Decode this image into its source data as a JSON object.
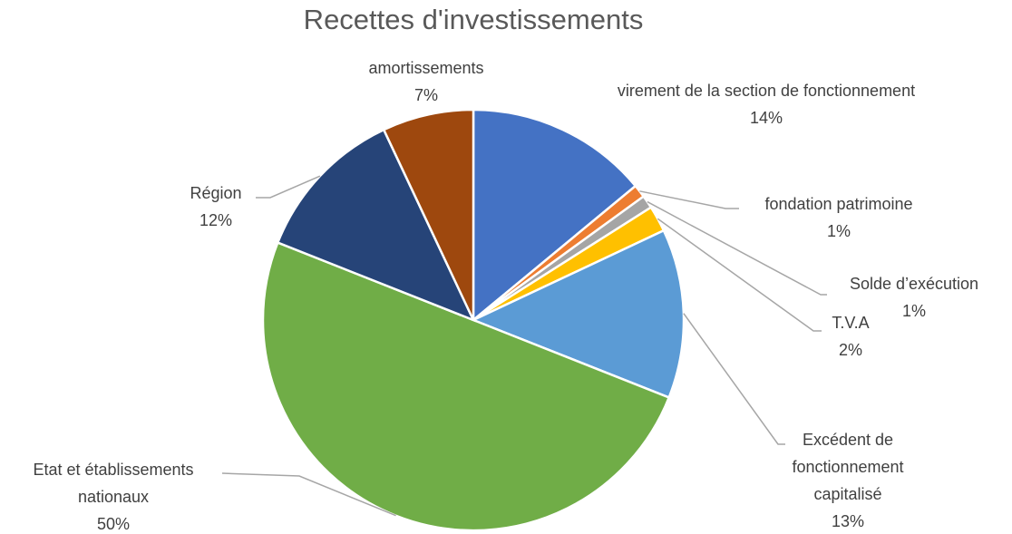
{
  "chart_data": {
    "type": "pie",
    "title": "Recettes d'investissements",
    "categories": [
      "virement de la section de fonctionnement",
      "fondation patrimoine",
      "Solde d’exécution",
      "T.V.A",
      "Excédent de fonctionnement capitalisé",
      "Etat et établissements nationaux",
      "Région",
      "amortissements"
    ],
    "values": [
      14,
      1,
      1,
      2,
      13,
      50,
      12,
      7
    ],
    "value_labels": [
      "14%",
      "1%",
      "1%",
      "2%",
      "13%",
      "50%",
      "12%",
      "7%"
    ],
    "colors": [
      "#4472c4",
      "#ed7d31",
      "#a5a5a5",
      "#ffc000",
      "#5b9bd5",
      "#70ad47",
      "#264478",
      "#9e480e"
    ]
  }
}
